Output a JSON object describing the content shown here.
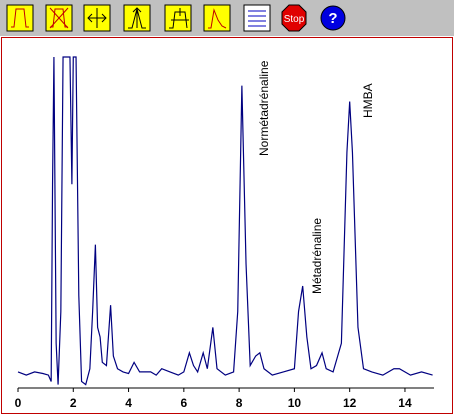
{
  "toolbar": {
    "buttons": [
      "Stop",
      "?"
    ]
  },
  "chart_data": {
    "type": "line",
    "annotations": [
      "Normétadrénaline",
      "Métadrénaline",
      "HMBA"
    ],
    "series": [
      {
        "color": "#000080",
        "x": [
          0,
          0.3,
          0.6,
          0.9,
          1.1,
          1.2,
          1.25,
          1.3,
          1.38,
          1.45,
          1.55,
          1.63,
          1.88,
          1.95,
          2.0,
          2.1,
          2.2,
          2.3,
          2.45,
          2.6,
          2.7,
          2.8,
          2.88,
          2.97,
          3.05,
          3.2,
          3.35,
          3.45,
          3.6,
          3.8,
          4.0,
          4.2,
          4.4,
          4.8,
          5.0,
          5.2,
          5.5,
          5.8,
          6.0,
          6.2,
          6.35,
          6.5,
          6.7,
          6.85,
          7.05,
          7.2,
          7.5,
          7.8,
          7.95,
          8.1,
          8.25,
          8.4,
          8.6,
          8.75,
          8.9,
          9.2,
          9.6,
          10.0,
          10.15,
          10.3,
          10.45,
          10.6,
          10.8,
          11.0,
          11.15,
          11.4,
          11.7,
          11.9,
          12.0,
          12.1,
          12.3,
          12.5,
          12.8,
          13.2,
          13.6,
          13.8,
          14.2,
          14.6,
          15
        ],
        "values": [
          1,
          0,
          1,
          0.5,
          0,
          -2,
          60,
          100,
          10,
          -3,
          20,
          100,
          100,
          60,
          100,
          100,
          25,
          -2,
          -3,
          2,
          20,
          41,
          15,
          12,
          4,
          3,
          22,
          6,
          2,
          1,
          0.5,
          4,
          1,
          1,
          0,
          2,
          1,
          0,
          1,
          7,
          3,
          1,
          7,
          2,
          15,
          2,
          0,
          1,
          20,
          91,
          35,
          3,
          6,
          7,
          2,
          0,
          1,
          2,
          20,
          28,
          12,
          2,
          3,
          7,
          2,
          1,
          10,
          70,
          86,
          70,
          15,
          2,
          1,
          0,
          2,
          2,
          0,
          1,
          0
        ]
      }
    ],
    "xlim": [
      0,
      15
    ],
    "xticks": [
      0,
      2,
      4,
      6,
      8,
      10,
      12,
      14
    ],
    "ylim": [
      -5,
      100
    ]
  }
}
